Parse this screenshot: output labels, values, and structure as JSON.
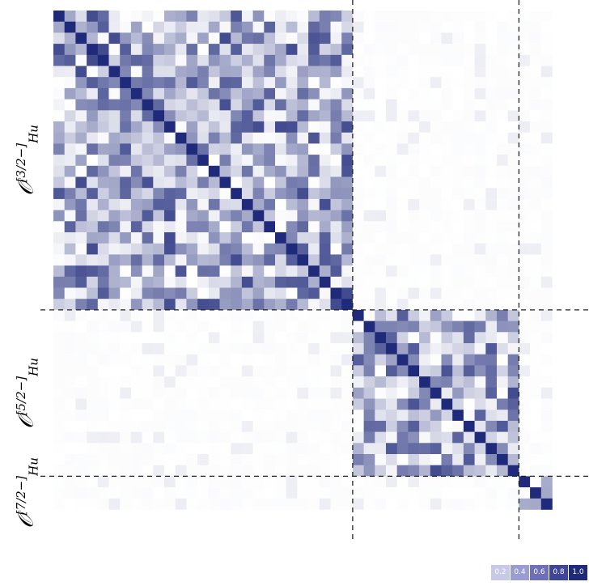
{
  "chart_data": {
    "type": "heatmap",
    "title": "",
    "colormap": {
      "low": "#ffffff",
      "high": "#1f2a7a"
    },
    "blocks": [
      {
        "name": "O_Hu^[3/2-]",
        "label_main": "𝒪",
        "label_sup": "[3/2−]",
        "label_sub": "Hu",
        "size": 27
      },
      {
        "name": "O_Hu^[5/2-]",
        "label_main": "𝒪",
        "label_sup": "[5/2−]",
        "label_sub": "Hu",
        "size": 15
      },
      {
        "name": "O_Hu^[7/2-]",
        "label_main": "𝒪",
        "label_sup": "[7/2−]",
        "label_sub": "Hu",
        "size": 3
      }
    ],
    "seed": 7,
    "colorbar_ticks": [
      "0.2",
      "0.4",
      "0.6",
      "0.8",
      "1.0"
    ]
  }
}
